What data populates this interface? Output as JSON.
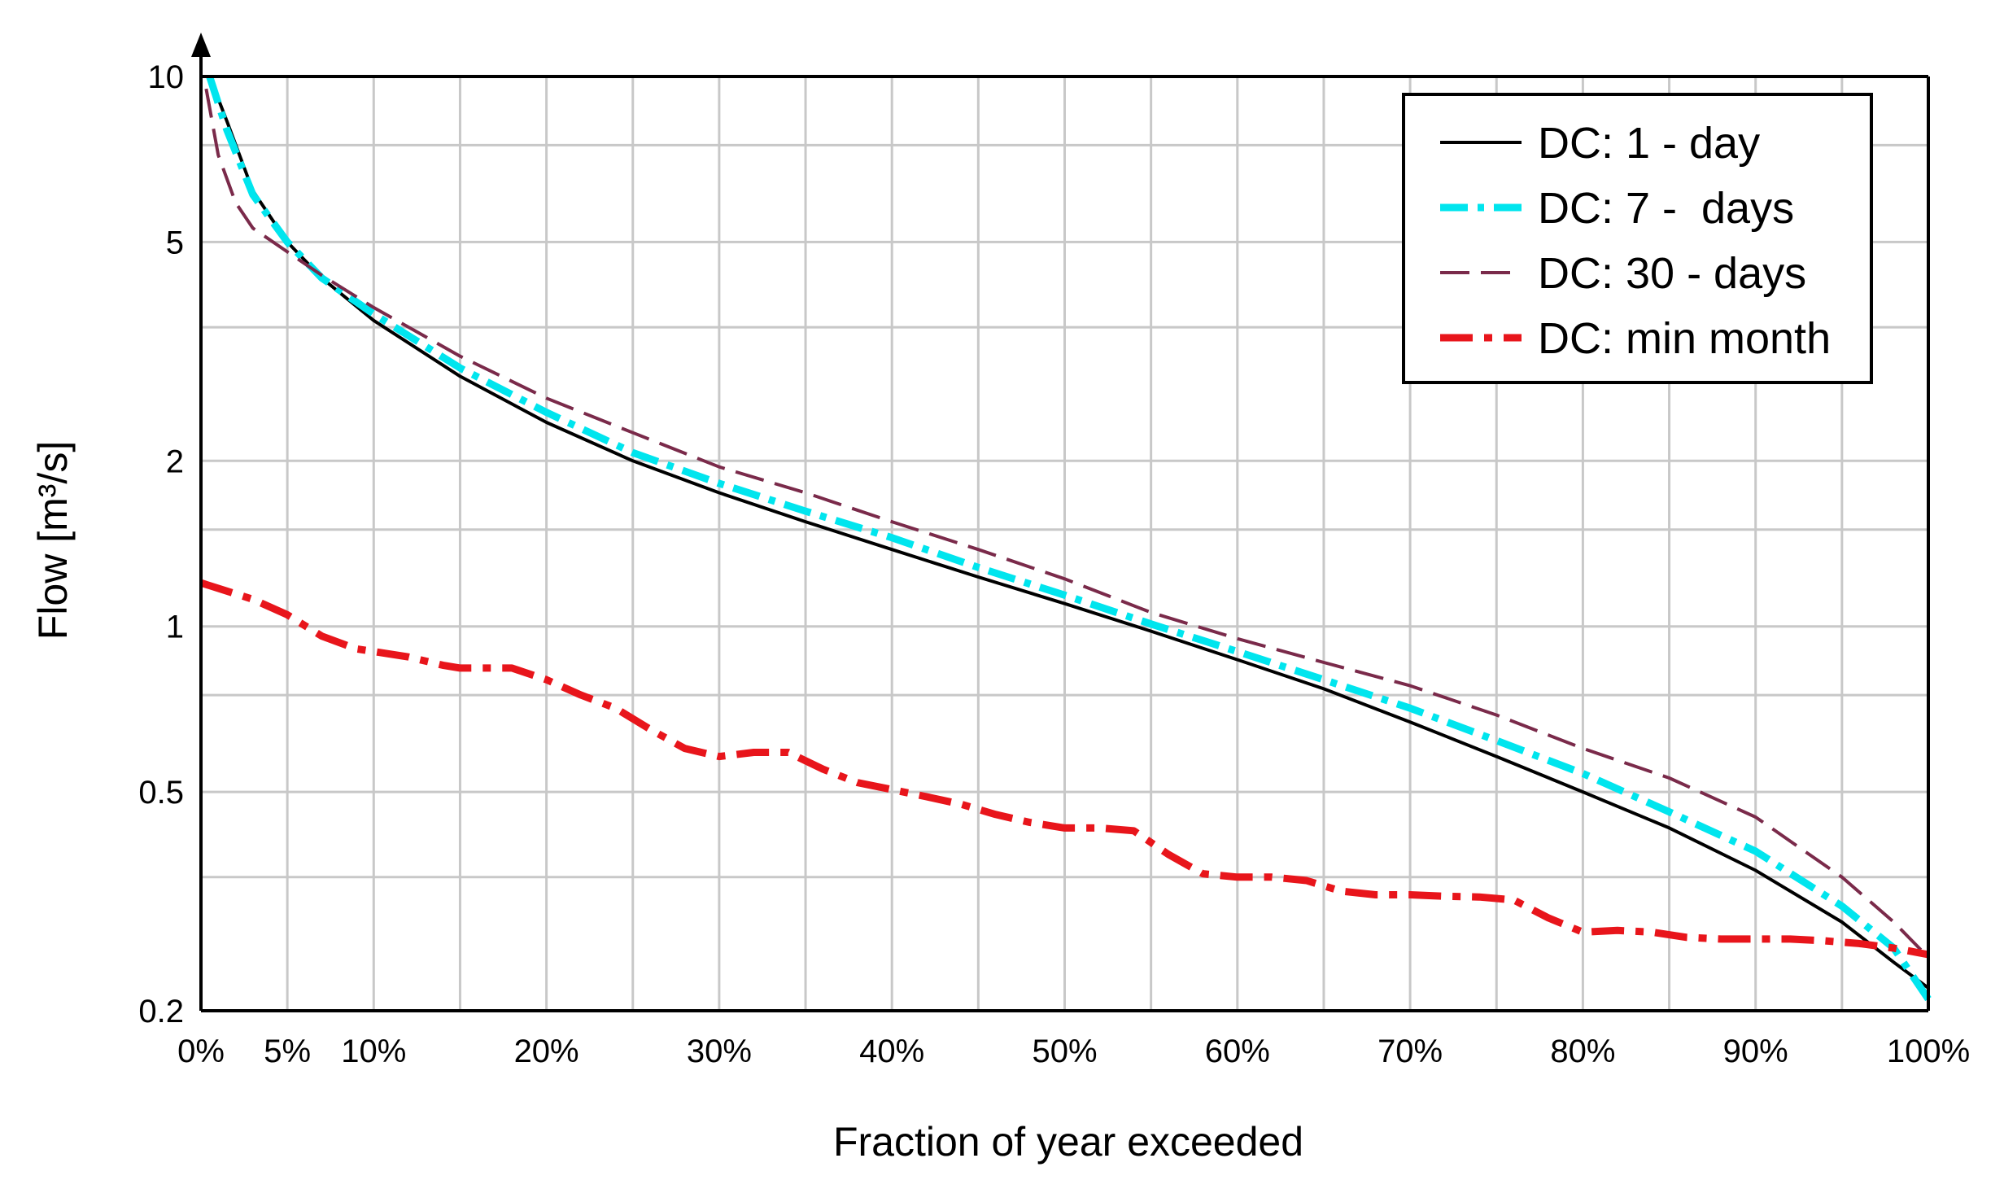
{
  "chart_data": {
    "type": "line",
    "title": "",
    "xlabel": "Fraction of year exceeded",
    "ylabel": "Flow [m³/s]",
    "xlim": [
      0,
      100
    ],
    "ylim": [
      0.2,
      10
    ],
    "yscale": "log",
    "grid": true,
    "legend_position": "top-right",
    "x_ticks": [
      {
        "value": 0,
        "label": "0%"
      },
      {
        "value": 5,
        "label": "5%"
      },
      {
        "value": 10,
        "label": "10%"
      },
      {
        "value": 20,
        "label": "20%"
      },
      {
        "value": 30,
        "label": "30%"
      },
      {
        "value": 40,
        "label": "40%"
      },
      {
        "value": 50,
        "label": "50%"
      },
      {
        "value": 60,
        "label": "60%"
      },
      {
        "value": 70,
        "label": "70%"
      },
      {
        "value": 80,
        "label": "80%"
      },
      {
        "value": 90,
        "label": "90%"
      },
      {
        "value": 100,
        "label": "100%"
      }
    ],
    "x_gridlines": [
      0,
      5,
      10,
      15,
      20,
      25,
      30,
      35,
      40,
      45,
      50,
      55,
      60,
      65,
      70,
      75,
      80,
      85,
      90,
      95,
      100
    ],
    "y_ticks": [
      {
        "value": 10,
        "label": "10"
      },
      {
        "value": 5,
        "label": "5"
      },
      {
        "value": 2,
        "label": "2"
      },
      {
        "value": 1,
        "label": "1"
      },
      {
        "value": 0.5,
        "label": "0.5"
      },
      {
        "value": 0.2,
        "label": "0.2"
      }
    ],
    "y_gridlines": [
      10,
      7.5,
      5,
      3.5,
      2,
      1.5,
      1,
      0.75,
      0.5,
      0.35,
      0.2
    ],
    "series": [
      {
        "name": "DC: 1 - day",
        "color": "#000000",
        "style": "solid",
        "x": [
          0.5,
          1.5,
          3,
          5,
          7,
          10,
          15,
          20,
          25,
          30,
          35,
          40,
          45,
          50,
          55,
          60,
          65,
          70,
          75,
          80,
          85,
          90,
          95,
          98,
          100
        ],
        "y": [
          10,
          8.3,
          6.2,
          5.0,
          4.3,
          3.6,
          2.85,
          2.35,
          2.0,
          1.75,
          1.55,
          1.38,
          1.23,
          1.1,
          0.98,
          0.87,
          0.77,
          0.67,
          0.58,
          0.5,
          0.43,
          0.36,
          0.29,
          0.245,
          0.22
        ]
      },
      {
        "name": "DC: 7 -  days",
        "color": "#00e5ee",
        "style": "dashdot",
        "x": [
          0.5,
          1.5,
          3,
          5,
          7,
          10,
          15,
          20,
          25,
          30,
          35,
          40,
          45,
          50,
          55,
          60,
          65,
          70,
          75,
          80,
          85,
          90,
          95,
          98,
          100
        ],
        "y": [
          10,
          8.0,
          6.1,
          5.0,
          4.3,
          3.7,
          2.95,
          2.45,
          2.07,
          1.82,
          1.62,
          1.45,
          1.28,
          1.14,
          1.01,
          0.9,
          0.8,
          0.71,
          0.62,
          0.54,
          0.46,
          0.39,
          0.31,
          0.26,
          0.21
        ]
      },
      {
        "name": "DC: 30 - days",
        "color": "#7a2a4a",
        "style": "longdash",
        "x": [
          0.3,
          1,
          2,
          3,
          5,
          7,
          10,
          15,
          20,
          25,
          30,
          35,
          40,
          45,
          50,
          55,
          60,
          65,
          70,
          75,
          80,
          85,
          90,
          95,
          98,
          100
        ],
        "y": [
          9.5,
          7.2,
          5.9,
          5.3,
          4.8,
          4.35,
          3.8,
          3.1,
          2.6,
          2.25,
          1.95,
          1.75,
          1.55,
          1.38,
          1.22,
          1.06,
          0.95,
          0.86,
          0.78,
          0.69,
          0.6,
          0.53,
          0.45,
          0.35,
          0.29,
          0.25
        ]
      },
      {
        "name": "DC: min month",
        "color": "#e8151b",
        "style": "dashdot-thick",
        "x": [
          0,
          3,
          5,
          7,
          9,
          10,
          12,
          14,
          15,
          16,
          18,
          20,
          22,
          24,
          26,
          28,
          30,
          32,
          34,
          36,
          38,
          40,
          42,
          44,
          46,
          48,
          50,
          52,
          54,
          56,
          58,
          60,
          62,
          64,
          66,
          68,
          70,
          72,
          74,
          76,
          78,
          80,
          82,
          84,
          86,
          88,
          90,
          92,
          94,
          96,
          98,
          100
        ],
        "y": [
          1.2,
          1.12,
          1.05,
          0.96,
          0.91,
          0.9,
          0.88,
          0.85,
          0.84,
          0.84,
          0.84,
          0.8,
          0.75,
          0.71,
          0.65,
          0.6,
          0.58,
          0.59,
          0.59,
          0.55,
          0.52,
          0.505,
          0.49,
          0.475,
          0.455,
          0.44,
          0.43,
          0.43,
          0.425,
          0.385,
          0.355,
          0.35,
          0.35,
          0.345,
          0.33,
          0.325,
          0.325,
          0.323,
          0.322,
          0.318,
          0.295,
          0.278,
          0.28,
          0.278,
          0.272,
          0.27,
          0.27,
          0.27,
          0.268,
          0.265,
          0.26,
          0.253
        ]
      }
    ]
  }
}
